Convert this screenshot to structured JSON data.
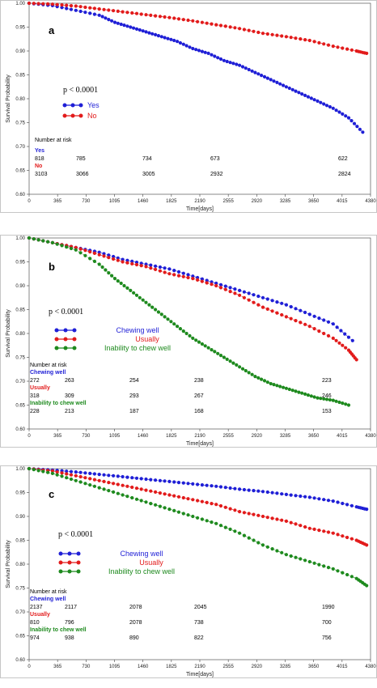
{
  "chart_data": [
    {
      "type": "line",
      "panel": "a",
      "ylabel": "Survival Probability",
      "xlabel": "Time[days]",
      "xlim": [
        0,
        4380
      ],
      "ylim": [
        0.6,
        1.0
      ],
      "xticks": [
        "0",
        "365",
        "730",
        "1095",
        "1460",
        "1825",
        "2190",
        "2555",
        "2920",
        "3285",
        "3650",
        "4015",
        "4380"
      ],
      "yticks": [
        "0.60",
        "0.65",
        "0.70",
        "0.75",
        "0.80",
        "0.85",
        "0.90",
        "0.95",
        "1.00"
      ],
      "p_value": "p < 0.0001",
      "series": [
        {
          "name": "Yes",
          "color": "#1f1fd6",
          "x": [
            0,
            300,
            600,
            900,
            1100,
            1300,
            1500,
            1700,
            1900,
            2100,
            2300,
            2500,
            2700,
            2900,
            3100,
            3300,
            3500,
            3700,
            3900,
            4100,
            4280
          ],
          "y": [
            1.0,
            0.995,
            0.985,
            0.975,
            0.96,
            0.95,
            0.94,
            0.93,
            0.92,
            0.905,
            0.895,
            0.88,
            0.87,
            0.855,
            0.84,
            0.825,
            0.81,
            0.795,
            0.78,
            0.76,
            0.73
          ]
        },
        {
          "name": "No",
          "color": "#e21b1b",
          "x": [
            0,
            300,
            600,
            900,
            1200,
            1500,
            1800,
            2100,
            2400,
            2700,
            3000,
            3300,
            3600,
            3900,
            4200,
            4330
          ],
          "y": [
            1.0,
            0.998,
            0.994,
            0.988,
            0.982,
            0.976,
            0.97,
            0.963,
            0.955,
            0.947,
            0.937,
            0.93,
            0.922,
            0.91,
            0.9,
            0.895
          ]
        }
      ],
      "risk_table": {
        "title": "Number at risk",
        "groups": [
          {
            "name": "Yes",
            "color": "#1f1fd6",
            "values": [
              "818",
              "785",
              "734",
              "673",
              "622"
            ]
          },
          {
            "name": "No",
            "color": "#e21b1b",
            "values": [
              "3103",
              "3066",
              "3005",
              "2932",
              "2824"
            ]
          }
        ]
      }
    },
    {
      "type": "line",
      "panel": "b",
      "ylabel": "Survival Probability",
      "xlabel": "Time[days]",
      "xlim": [
        0,
        4380
      ],
      "ylim": [
        0.6,
        1.0
      ],
      "xticks": [
        "0",
        "365",
        "730",
        "1095",
        "1460",
        "1825",
        "2190",
        "2555",
        "2920",
        "3285",
        "3650",
        "4015",
        "4380"
      ],
      "yticks": [
        "0.60",
        "0.65",
        "0.70",
        "0.75",
        "0.80",
        "0.85",
        "0.90",
        "0.95",
        "1.00"
      ],
      "p_value": "p < 0.0001",
      "series": [
        {
          "name": "Chewing well",
          "color": "#1f1fd6",
          "x": [
            0,
            300,
            600,
            900,
            1200,
            1500,
            1800,
            2100,
            2400,
            2700,
            3000,
            3300,
            3600,
            3900,
            4150
          ],
          "y": [
            1.0,
            0.99,
            0.98,
            0.97,
            0.955,
            0.945,
            0.935,
            0.92,
            0.905,
            0.89,
            0.875,
            0.86,
            0.84,
            0.82,
            0.785
          ]
        },
        {
          "name": "Usually",
          "color": "#e21b1b",
          "x": [
            0,
            300,
            600,
            900,
            1200,
            1500,
            1800,
            2100,
            2400,
            2700,
            3000,
            3300,
            3600,
            3900,
            4100,
            4200
          ],
          "y": [
            1.0,
            0.99,
            0.98,
            0.965,
            0.95,
            0.94,
            0.925,
            0.915,
            0.9,
            0.88,
            0.855,
            0.835,
            0.815,
            0.79,
            0.765,
            0.745
          ]
        },
        {
          "name": "Inability to chew well",
          "color": "#1e8a1e",
          "x": [
            0,
            300,
            600,
            900,
            1100,
            1300,
            1500,
            1700,
            1900,
            2100,
            2300,
            2500,
            2700,
            2900,
            3100,
            3300,
            3500,
            3700,
            3900,
            4100
          ],
          "y": [
            1.0,
            0.99,
            0.975,
            0.945,
            0.915,
            0.89,
            0.865,
            0.84,
            0.815,
            0.79,
            0.77,
            0.75,
            0.73,
            0.71,
            0.695,
            0.685,
            0.675,
            0.665,
            0.66,
            0.65
          ]
        }
      ],
      "risk_table": {
        "title": "Number at risk",
        "groups": [
          {
            "name": "Chewing well",
            "color": "#1f1fd6",
            "values": [
              "272",
              "263",
              "254",
              "238",
              "223"
            ]
          },
          {
            "name": "Usually",
            "color": "#e21b1b",
            "values": [
              "318",
              "309",
              "293",
              "267",
              "246"
            ]
          },
          {
            "name": "Inability to chew well",
            "color": "#1e8a1e",
            "values": [
              "228",
              "213",
              "187",
              "168",
              "153"
            ]
          }
        ]
      }
    },
    {
      "type": "line",
      "panel": "c",
      "ylabel": "Survival Probability",
      "xlabel": "Time[days]",
      "xlim": [
        0,
        4380
      ],
      "ylim": [
        0.6,
        1.0
      ],
      "xticks": [
        "0",
        "365",
        "730",
        "1095",
        "1460",
        "1825",
        "2190",
        "2555",
        "2920",
        "3285",
        "3650",
        "4015",
        "4380"
      ],
      "yticks": [
        "0.60",
        "0.65",
        "0.70",
        "0.75",
        "0.80",
        "0.85",
        "0.90",
        "0.95",
        "1.00"
      ],
      "p_value": "p < 0.0001",
      "series": [
        {
          "name": "Chewing well",
          "color": "#1f1fd6",
          "x": [
            0,
            300,
            600,
            900,
            1200,
            1500,
            1800,
            2100,
            2400,
            2700,
            3000,
            3300,
            3600,
            3900,
            4200,
            4330
          ],
          "y": [
            1.0,
            0.997,
            0.993,
            0.988,
            0.983,
            0.978,
            0.973,
            0.968,
            0.963,
            0.957,
            0.952,
            0.946,
            0.94,
            0.932,
            0.92,
            0.915
          ]
        },
        {
          "name": "Usually",
          "color": "#e21b1b",
          "x": [
            0,
            300,
            600,
            900,
            1200,
            1500,
            1800,
            2100,
            2400,
            2700,
            3000,
            3300,
            3600,
            3900,
            4200,
            4330
          ],
          "y": [
            1.0,
            0.995,
            0.985,
            0.975,
            0.965,
            0.955,
            0.945,
            0.935,
            0.925,
            0.91,
            0.9,
            0.89,
            0.875,
            0.865,
            0.85,
            0.84
          ]
        },
        {
          "name": "Inability to chew well",
          "color": "#1e8a1e",
          "x": [
            0,
            300,
            600,
            900,
            1200,
            1500,
            1800,
            2100,
            2400,
            2700,
            3000,
            3300,
            3600,
            3900,
            4200,
            4330
          ],
          "y": [
            1.0,
            0.99,
            0.975,
            0.96,
            0.945,
            0.93,
            0.915,
            0.9,
            0.885,
            0.865,
            0.84,
            0.82,
            0.805,
            0.79,
            0.77,
            0.755
          ]
        }
      ],
      "risk_table": {
        "title": "Number at risk",
        "groups": [
          {
            "name": "Chewing well",
            "color": "#1f1fd6",
            "values": [
              "2137",
              "2117",
              "2078",
              "2045",
              "1990"
            ]
          },
          {
            "name": "Usually",
            "color": "#e21b1b",
            "values": [
              "810",
              "796",
              "2078",
              "738",
              "700"
            ]
          },
          {
            "name": "Inability to chew well",
            "color": "#1e8a1e",
            "values": [
              "974",
              "938",
              "890",
              "822",
              "756"
            ]
          }
        ]
      }
    }
  ]
}
